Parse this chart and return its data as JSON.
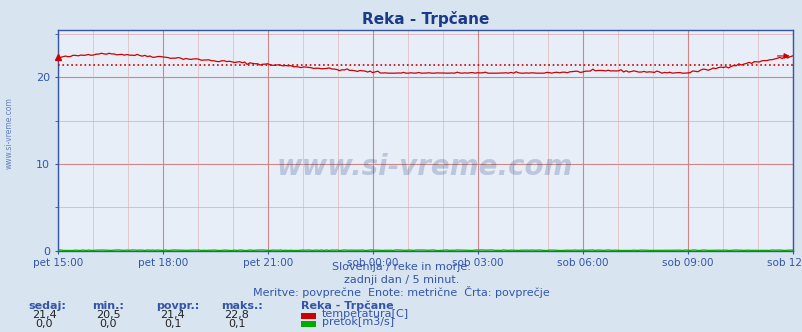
{
  "title": "Reka - Trpčane",
  "title_color": "#1a3a8a",
  "bg_color": "#d8e4f0",
  "plot_bg_color": "#e8eef8",
  "border_color": "#3355aa",
  "x_labels": [
    "pet 15:00",
    "pet 18:00",
    "pet 21:00",
    "sob 00:00",
    "sob 03:00",
    "sob 06:00",
    "sob 09:00",
    "sob 12:00"
  ],
  "y_ticks": [
    0,
    10,
    20
  ],
  "ylim": [
    0,
    25.5
  ],
  "grid_color_major": "#cc8888",
  "grid_color_minor": "#ddaaaa",
  "temp_color": "#cc0000",
  "flow_color": "#00aa00",
  "avg_line_color": "#cc0000",
  "avg_value": 21.4,
  "temp_min": 20.5,
  "temp_max": 22.8,
  "temp_avg": 21.4,
  "temp_cur": 21.4,
  "flow_min": 0.0,
  "flow_max": 0.1,
  "flow_avg": 0.1,
  "flow_cur": 0.0,
  "subtitle1": "Slovenija / reke in morje.",
  "subtitle2": "zadnji dan / 5 minut.",
  "subtitle3": "Meritve: povprečne  Enote: metrične  Črta: povprečje",
  "text_color": "#3355aa",
  "watermark": "www.si-vreme.com",
  "watermark_color": "#1a3a7a",
  "label_sedaj": "sedaj:",
  "label_min": "min.:",
  "label_povpr": "povpr.:",
  "label_maks": "maks.:",
  "label_station": "Reka - Trpčane",
  "label_temp": "temperatura[C]",
  "label_flow": "pretok[m3/s]",
  "n_points": 288
}
